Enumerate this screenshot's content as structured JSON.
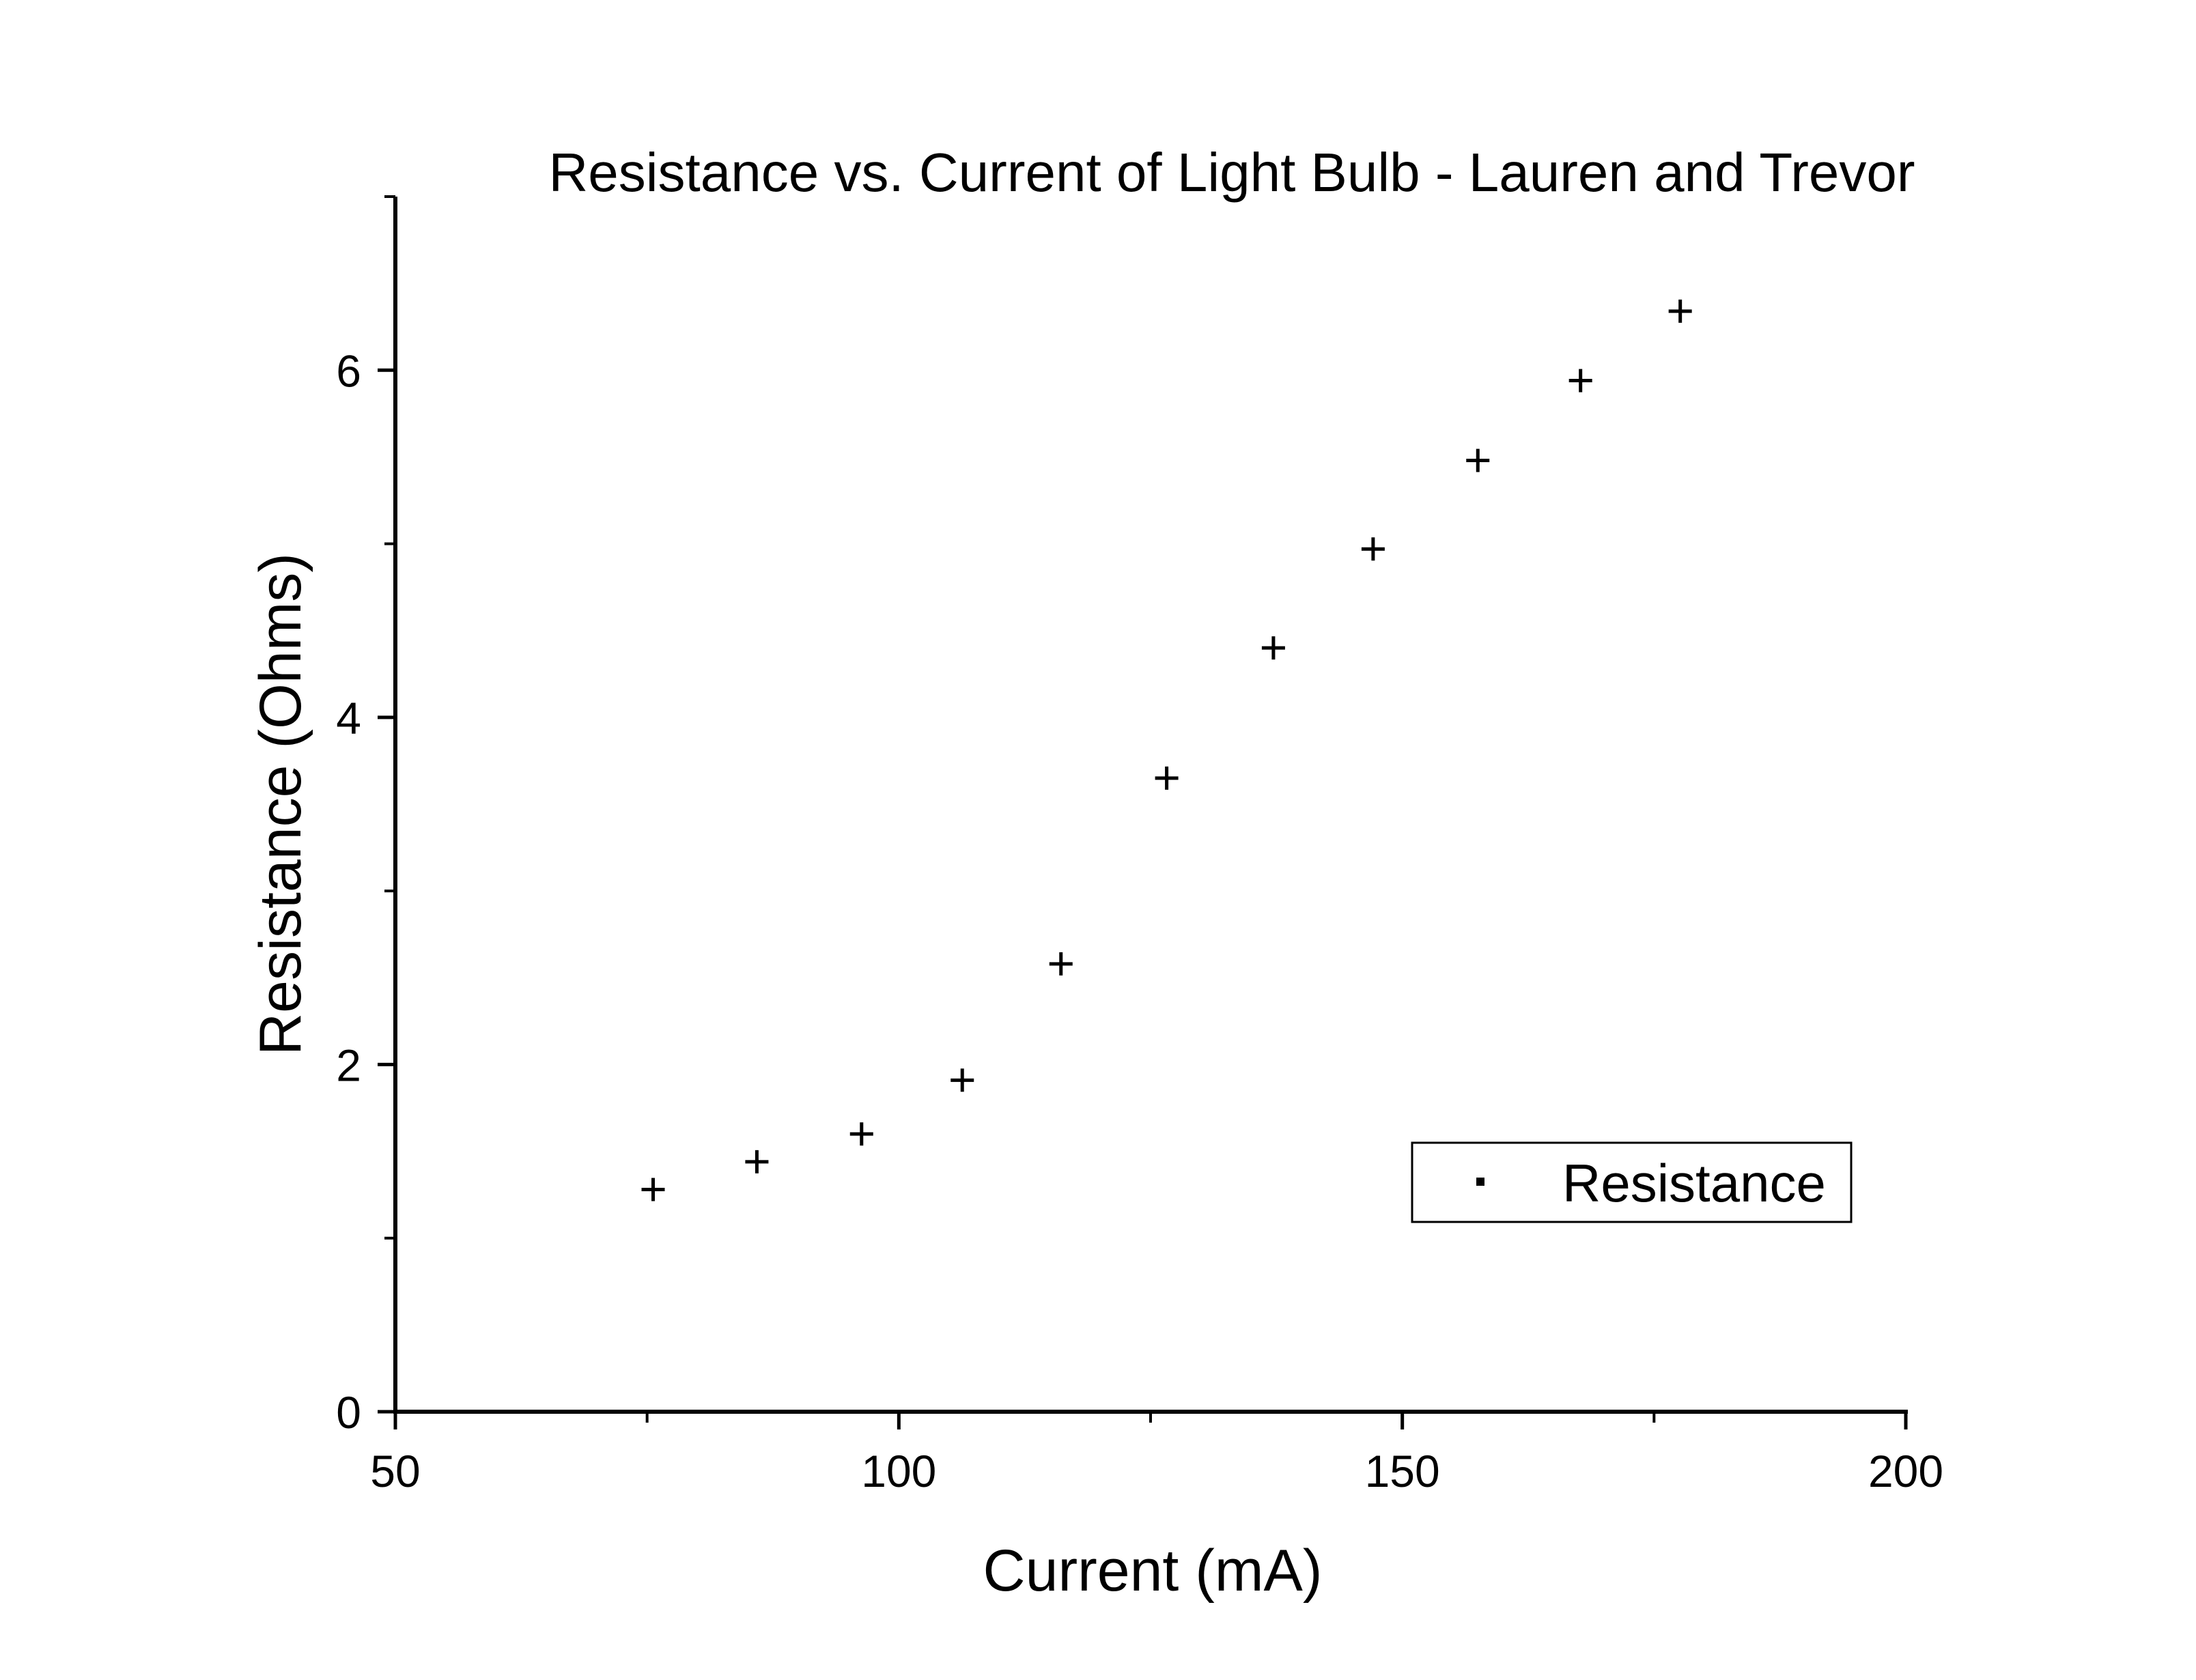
{
  "chart_data": {
    "type": "scatter",
    "title": "Resistance vs. Current of Light Bulb - Lauren and Trevor",
    "xlabel": "Current (mA)",
    "ylabel": "Resistance (Ohms)",
    "xlim": [
      50,
      200
    ],
    "ylim": [
      0,
      7
    ],
    "x_ticks": [
      50,
      100,
      150,
      200
    ],
    "y_ticks": [
      0,
      2,
      4,
      6
    ],
    "x_tick_labels": [
      "50",
      "100",
      "150",
      "200"
    ],
    "y_tick_labels": [
      "0",
      "2",
      "4",
      "6"
    ],
    "grid": false,
    "legend_position": "bottom-right",
    "series": [
      {
        "name": "Resistance",
        "marker": "plus",
        "color": "#000000",
        "x": [
          75.6,
          85.9,
          96.3,
          106.3,
          116.1,
          126.6,
          137.2,
          147.1,
          157.5,
          167.7,
          177.6
        ],
        "y": [
          1.28,
          1.44,
          1.6,
          1.91,
          2.58,
          3.65,
          4.4,
          4.97,
          5.48,
          5.94,
          6.34
        ]
      }
    ]
  }
}
